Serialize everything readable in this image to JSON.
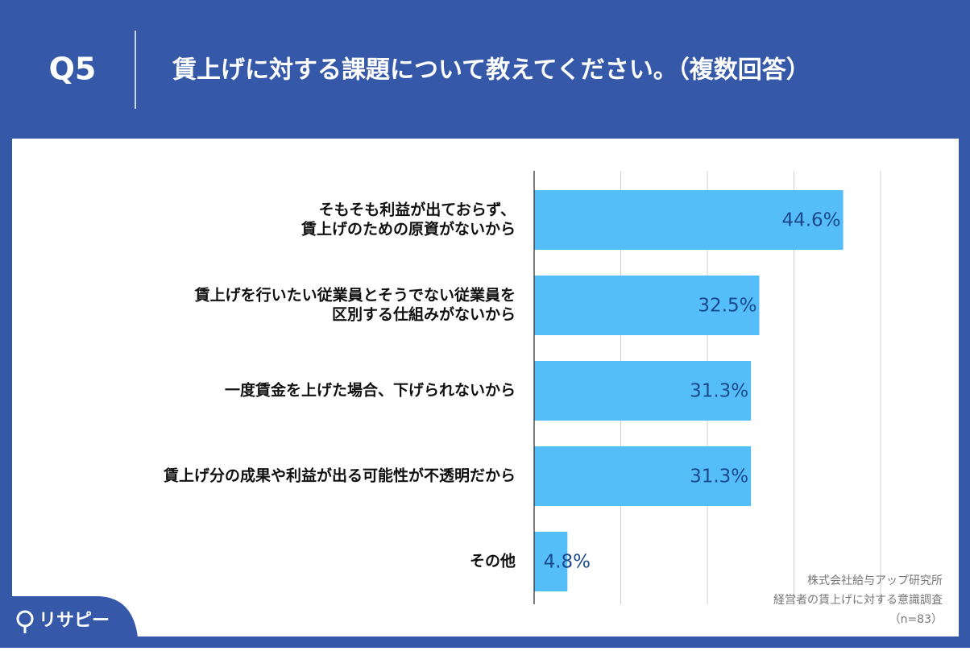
{
  "header": {
    "question": "Q5",
    "title": "賃上げに対する課題について教えてください。（複数回答）"
  },
  "chart_data": {
    "type": "bar",
    "orientation": "horizontal",
    "categories": [
      [
        "そもそも利益が出ておらず、",
        "賃上げのための原資がないから"
      ],
      [
        "賃上げを行いたい従業員とそうでない従業員を",
        "区別する仕組みがないから"
      ],
      [
        "一度賃金を上げた場合、下げられないから"
      ],
      [
        "賃上げ分の成果や利益が出る可能性が不透明だから"
      ],
      [
        "その他"
      ]
    ],
    "values": [
      44.6,
      32.5,
      31.3,
      31.3,
      4.8
    ],
    "value_labels": [
      "44.6%",
      "32.5%",
      "31.3%",
      "31.3%",
      "4.8%"
    ],
    "color": "#55bdf8",
    "xlim": [
      0,
      50
    ],
    "xticks": [
      0,
      12.5,
      25,
      37.5,
      50
    ],
    "grid": true
  },
  "source": [
    "株式会社給与アップ研究所",
    "経営者の賃上げに対する意識調査",
    "（n=83）"
  ],
  "logo": "リサピー"
}
